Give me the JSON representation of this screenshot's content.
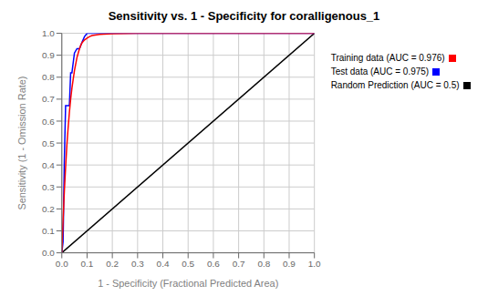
{
  "chart_data": {
    "type": "line",
    "title": "Sensitivity vs. 1 - Specificity for coralligenous_1",
    "xlabel": "1 - Specificity  (Fractional Predicted Area)",
    "ylabel": "Sensitivity  (1 - Omission Rate)",
    "xlim": [
      0.0,
      1.0
    ],
    "ylim": [
      0.0,
      1.0
    ],
    "xticks": [
      {
        "value": 0,
        "label": "0.0"
      },
      0.1,
      0.2,
      0.3,
      0.4,
      0.5,
      0.6,
      0.7,
      0.8,
      0.9,
      {
        "value": 1,
        "label": "1.0"
      }
    ],
    "yticks": [
      {
        "value": 0,
        "label": "0.0"
      },
      0.1,
      0.2,
      0.3,
      0.4,
      0.5,
      0.6,
      0.7,
      0.8,
      0.9,
      {
        "value": 1,
        "label": "1.0"
      }
    ],
    "grid": true,
    "legend": "right",
    "series": [
      {
        "name": "Training data (AUC = 0.976)",
        "color": "#ff0000",
        "x": [
          0.0,
          0.005,
          0.01,
          0.015,
          0.02,
          0.025,
          0.03,
          0.035,
          0.04,
          0.045,
          0.05,
          0.055,
          0.06,
          0.065,
          0.07,
          0.075,
          0.08,
          0.09,
          0.1,
          0.11,
          0.12,
          0.15,
          0.2,
          0.3,
          0.4,
          0.5,
          1.0
        ],
        "values": [
          0.0,
          0.15,
          0.28,
          0.39,
          0.49,
          0.57,
          0.64,
          0.7,
          0.75,
          0.79,
          0.83,
          0.86,
          0.89,
          0.91,
          0.93,
          0.945,
          0.957,
          0.97,
          0.978,
          0.985,
          0.99,
          0.995,
          0.998,
          1.0,
          1.0,
          1.0,
          1.0
        ]
      },
      {
        "name": "Test data (AUC = 0.975)",
        "color": "#0000ff",
        "x": [
          0.0,
          0.005,
          0.01,
          0.015,
          0.02,
          0.025,
          0.03,
          0.035,
          0.04,
          0.05,
          0.06,
          0.07,
          0.08,
          0.09,
          0.1,
          0.11,
          0.12,
          0.15,
          0.2,
          0.3,
          0.4,
          0.5,
          1.0
        ],
        "values": [
          0.0,
          0.05,
          0.42,
          0.67,
          0.67,
          0.67,
          0.67,
          0.82,
          0.82,
          0.91,
          0.93,
          0.93,
          0.96,
          0.985,
          1.0,
          1.0,
          1.0,
          1.0,
          1.0,
          1.0,
          1.0,
          1.0,
          1.0
        ]
      },
      {
        "name": "Random Prediction (AUC = 0.5)",
        "color": "#000000",
        "x": [
          0.0,
          1.0
        ],
        "values": [
          0.0,
          1.0
        ]
      }
    ]
  }
}
